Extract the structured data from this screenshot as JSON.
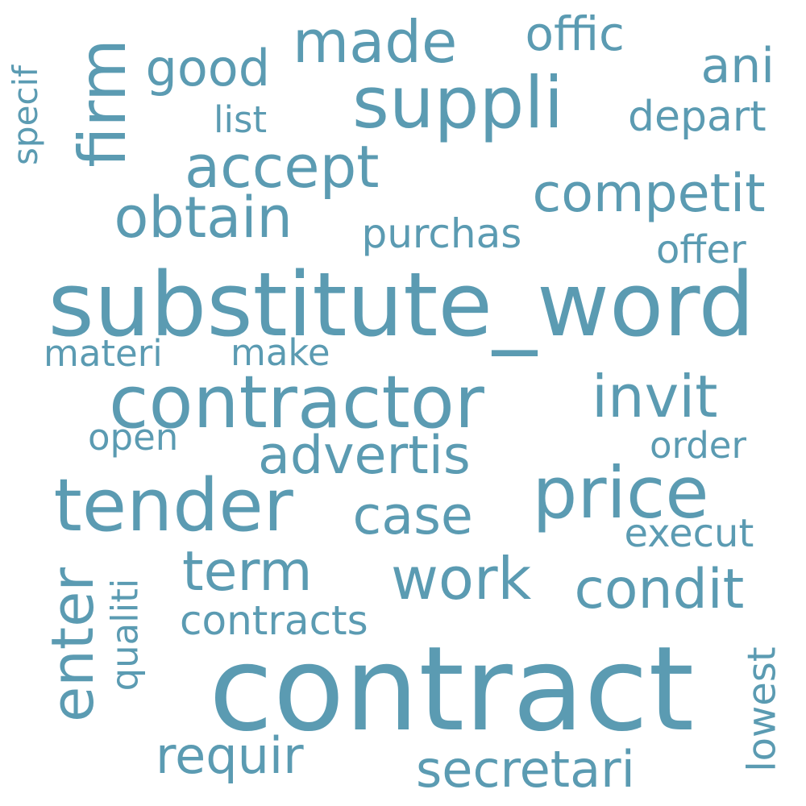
{
  "word_color": "#5b9bb2",
  "background_color": "#ffffff",
  "words": [
    {
      "text": "contract"
    },
    {
      "text": "substitute_word"
    },
    {
      "text": "contractor"
    },
    {
      "text": "tender"
    },
    {
      "text": "suppli"
    },
    {
      "text": "price"
    },
    {
      "text": "firm"
    },
    {
      "text": "made"
    },
    {
      "text": "accept"
    },
    {
      "text": "obtain"
    },
    {
      "text": "competit"
    },
    {
      "text": "invit"
    },
    {
      "text": "advertis"
    },
    {
      "text": "case"
    },
    {
      "text": "term"
    },
    {
      "text": "work"
    },
    {
      "text": "condit"
    },
    {
      "text": "enter"
    },
    {
      "text": "requir"
    },
    {
      "text": "secretari"
    },
    {
      "text": "good"
    },
    {
      "text": "offic"
    },
    {
      "text": "ani"
    },
    {
      "text": "depart"
    },
    {
      "text": "list"
    },
    {
      "text": "specif"
    },
    {
      "text": "purchas"
    },
    {
      "text": "offer"
    },
    {
      "text": "materi"
    },
    {
      "text": "make"
    },
    {
      "text": "open"
    },
    {
      "text": "order"
    },
    {
      "text": "execut"
    },
    {
      "text": "contracts"
    },
    {
      "text": "qualiti"
    },
    {
      "text": "lowest"
    }
  ]
}
